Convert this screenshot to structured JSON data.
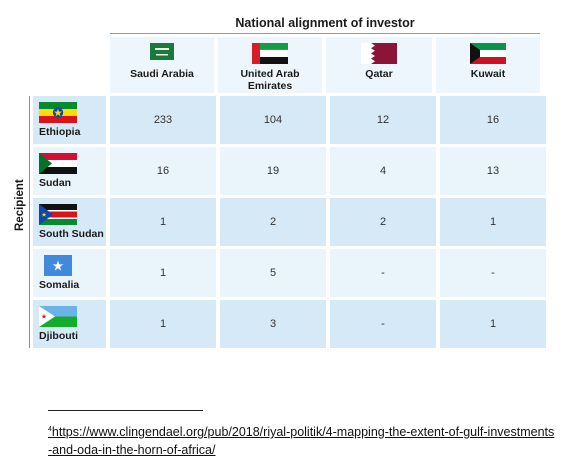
{
  "table": {
    "title": "National alignment of investor",
    "row_axis_label": "Recipient",
    "investors": [
      {
        "name": "Saudi Arabia",
        "flag": "saudi-arabia-flag"
      },
      {
        "name": "United Arab Emirates",
        "flag": "uae-flag"
      },
      {
        "name": "Qatar",
        "flag": "qatar-flag"
      },
      {
        "name": "Kuwait",
        "flag": "kuwait-flag"
      }
    ],
    "recipients": [
      {
        "name": "Ethiopia",
        "flag": "ethiopia-flag",
        "values": [
          "233",
          "104",
          "12",
          "16"
        ]
      },
      {
        "name": "Sudan",
        "flag": "sudan-flag",
        "values": [
          "16",
          "19",
          "4",
          "13"
        ]
      },
      {
        "name": "South Sudan",
        "flag": "south-sudan-flag",
        "values": [
          "1",
          "2",
          "2",
          "1"
        ]
      },
      {
        "name": "Somalia",
        "flag": "somalia-flag",
        "values": [
          "1",
          "5",
          "-",
          "-"
        ]
      },
      {
        "name": "Djibouti",
        "flag": "djibouti-flag",
        "values": [
          "1",
          "3",
          "-",
          "1"
        ]
      }
    ]
  },
  "footnote": {
    "marker": "4",
    "text": "https://www.clingendael.org/pub/2018/riyal-politik/4-mapping-the-extent-of-gulf-investments-and-oda-in-the-horn-of-africa/"
  }
}
